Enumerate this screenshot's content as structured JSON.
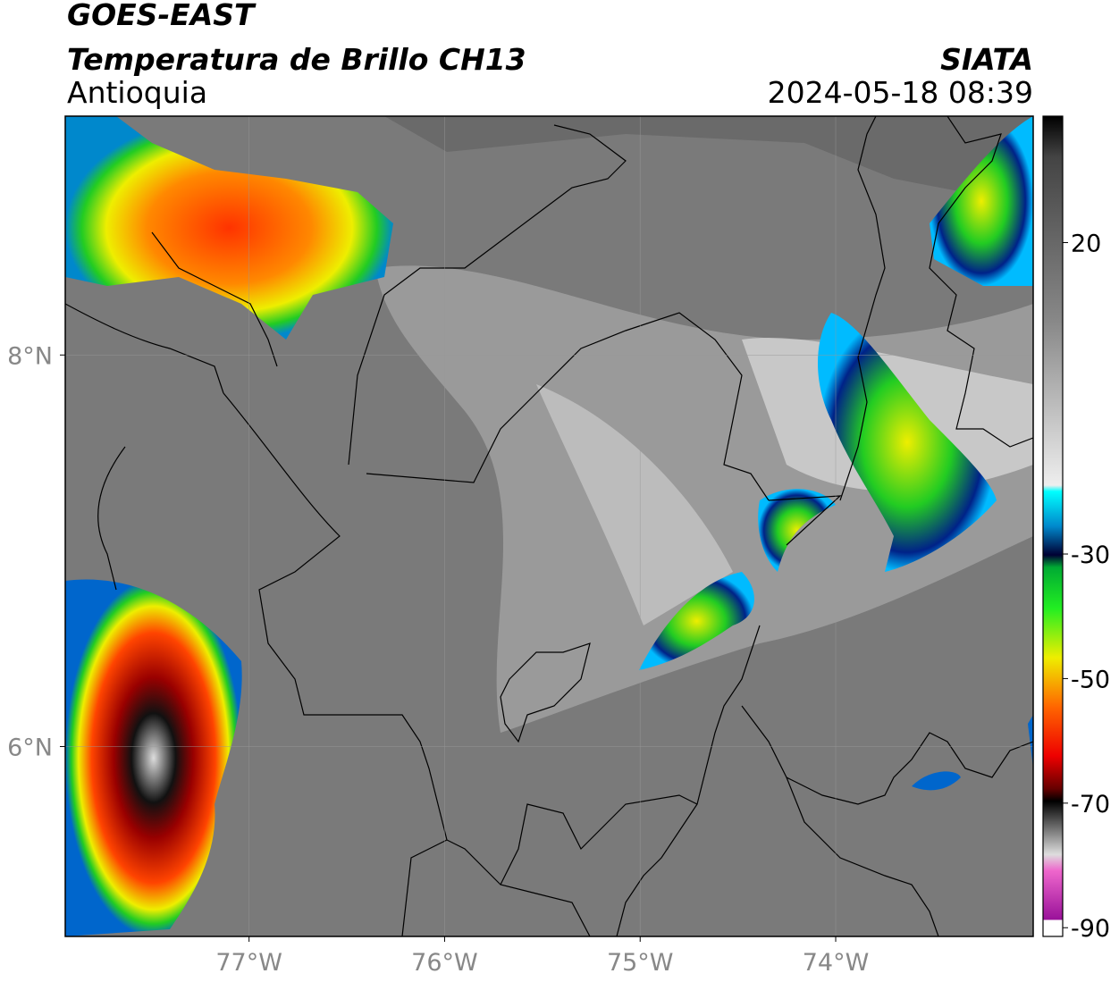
{
  "header": {
    "title": "GOES-EAST",
    "subtitle": "Temperatura de Brillo CH13",
    "region": "Antioquia",
    "source": "SIATA",
    "datetime": "2024-05-18 08:39"
  },
  "map": {
    "xlim": [
      -77.94,
      -72.99
    ],
    "ylim": [
      5.03,
      9.22
    ],
    "xticks": [
      {
        "value": -77,
        "label": "77°W"
      },
      {
        "value": -76,
        "label": "76°W"
      },
      {
        "value": -75,
        "label": "75°W"
      },
      {
        "value": -74,
        "label": "74°W"
      }
    ],
    "yticks": [
      {
        "value": 8,
        "label": "8°N"
      },
      {
        "value": 6,
        "label": "6°N"
      }
    ],
    "grid": true
  },
  "colorbar": {
    "lim": [
      -91.4,
      40.3
    ],
    "ticks": [
      20,
      -30,
      -50,
      -70,
      -90
    ]
  }
}
